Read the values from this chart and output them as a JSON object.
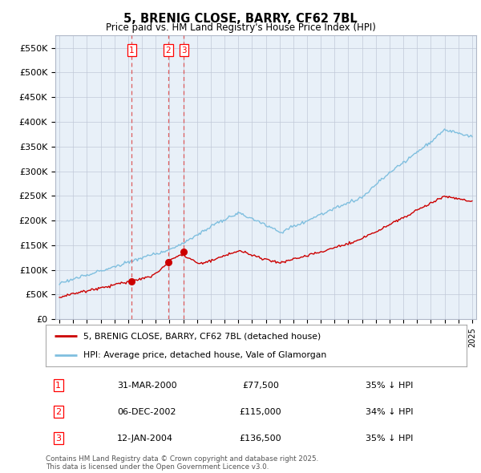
{
  "title": "5, BRENIG CLOSE, BARRY, CF62 7BL",
  "subtitle": "Price paid vs. HM Land Registry's House Price Index (HPI)",
  "ylim": [
    0,
    575000
  ],
  "yticks": [
    0,
    50000,
    100000,
    150000,
    200000,
    250000,
    300000,
    350000,
    400000,
    450000,
    500000,
    550000
  ],
  "ytick_labels": [
    "£0",
    "£50K",
    "£100K",
    "£150K",
    "£200K",
    "£250K",
    "£300K",
    "£350K",
    "£400K",
    "£450K",
    "£500K",
    "£550K"
  ],
  "xlim_start": 1994.7,
  "xlim_end": 2025.3,
  "sale_dates": [
    2000.25,
    2002.92,
    2004.04
  ],
  "sale_labels": [
    "1",
    "2",
    "3"
  ],
  "sale_prices": [
    77500,
    115000,
    136500
  ],
  "sale_info": [
    "31-MAR-2000",
    "06-DEC-2002",
    "12-JAN-2004"
  ],
  "sale_hpi_pct": [
    "35% ↓ HPI",
    "34% ↓ HPI",
    "35% ↓ HPI"
  ],
  "legend_property": "5, BRENIG CLOSE, BARRY, CF62 7BL (detached house)",
  "legend_hpi": "HPI: Average price, detached house, Vale of Glamorgan",
  "property_line_color": "#cc0000",
  "hpi_line_color": "#7fbfdf",
  "vline_color": "#dd4444",
  "plot_bg_color": "#e8f0f8",
  "footnote": "Contains HM Land Registry data © Crown copyright and database right 2025.\nThis data is licensed under the Open Government Licence v3.0.",
  "background_color": "#ffffff",
  "grid_color": "#c0c8d8"
}
